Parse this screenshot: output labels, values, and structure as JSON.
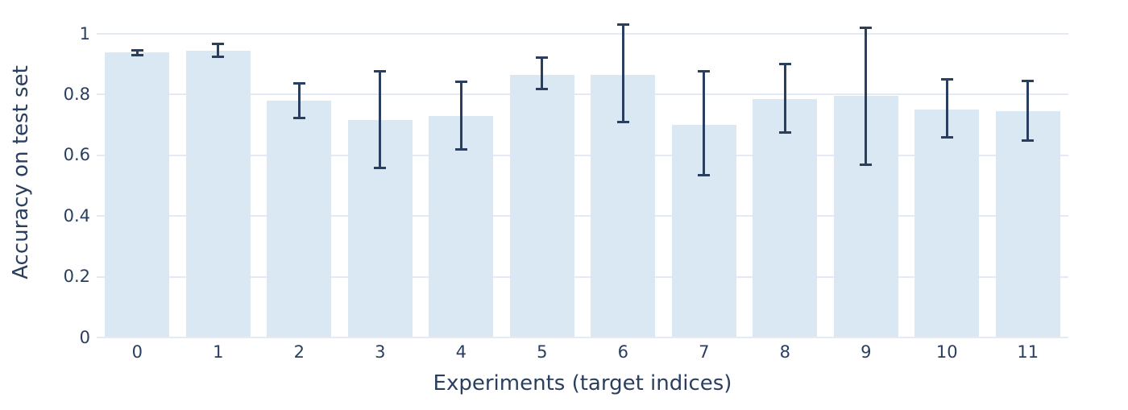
{
  "chart_data": {
    "type": "bar",
    "title": "",
    "xlabel": "Experiments (target indices)",
    "ylabel": "Accuracy on test set",
    "categories": [
      "0",
      "1",
      "2",
      "3",
      "4",
      "5",
      "6",
      "7",
      "8",
      "9",
      "10",
      "11"
    ],
    "values": [
      0.94,
      0.945,
      0.78,
      0.715,
      0.73,
      0.865,
      0.865,
      0.7,
      0.785,
      0.795,
      0.75,
      0.745
    ],
    "error_low": [
      0.925,
      0.92,
      0.72,
      0.555,
      0.615,
      0.815,
      0.705,
      0.53,
      0.67,
      0.565,
      0.655,
      0.645
    ],
    "error_high": [
      0.95,
      0.97,
      0.84,
      0.88,
      0.845,
      0.925,
      1.035,
      0.88,
      0.905,
      1.025,
      0.855,
      0.85
    ],
    "ylim": [
      0,
      1.085
    ],
    "yticks": {
      "values": [
        0,
        0.2,
        0.4,
        0.6,
        0.8,
        1
      ],
      "labels": [
        "0",
        "0.2",
        "0.4",
        "0.6",
        "0.8",
        "1"
      ]
    },
    "grid": true,
    "legend": false
  },
  "style": {
    "bar_fill": "#d9e8f2",
    "error_color": "#2a3f5f",
    "text_color": "#2a3f5f",
    "grid_color": "#e4eaf5",
    "zeroline_color": "#e6eaf2",
    "background": "#ffffff"
  }
}
